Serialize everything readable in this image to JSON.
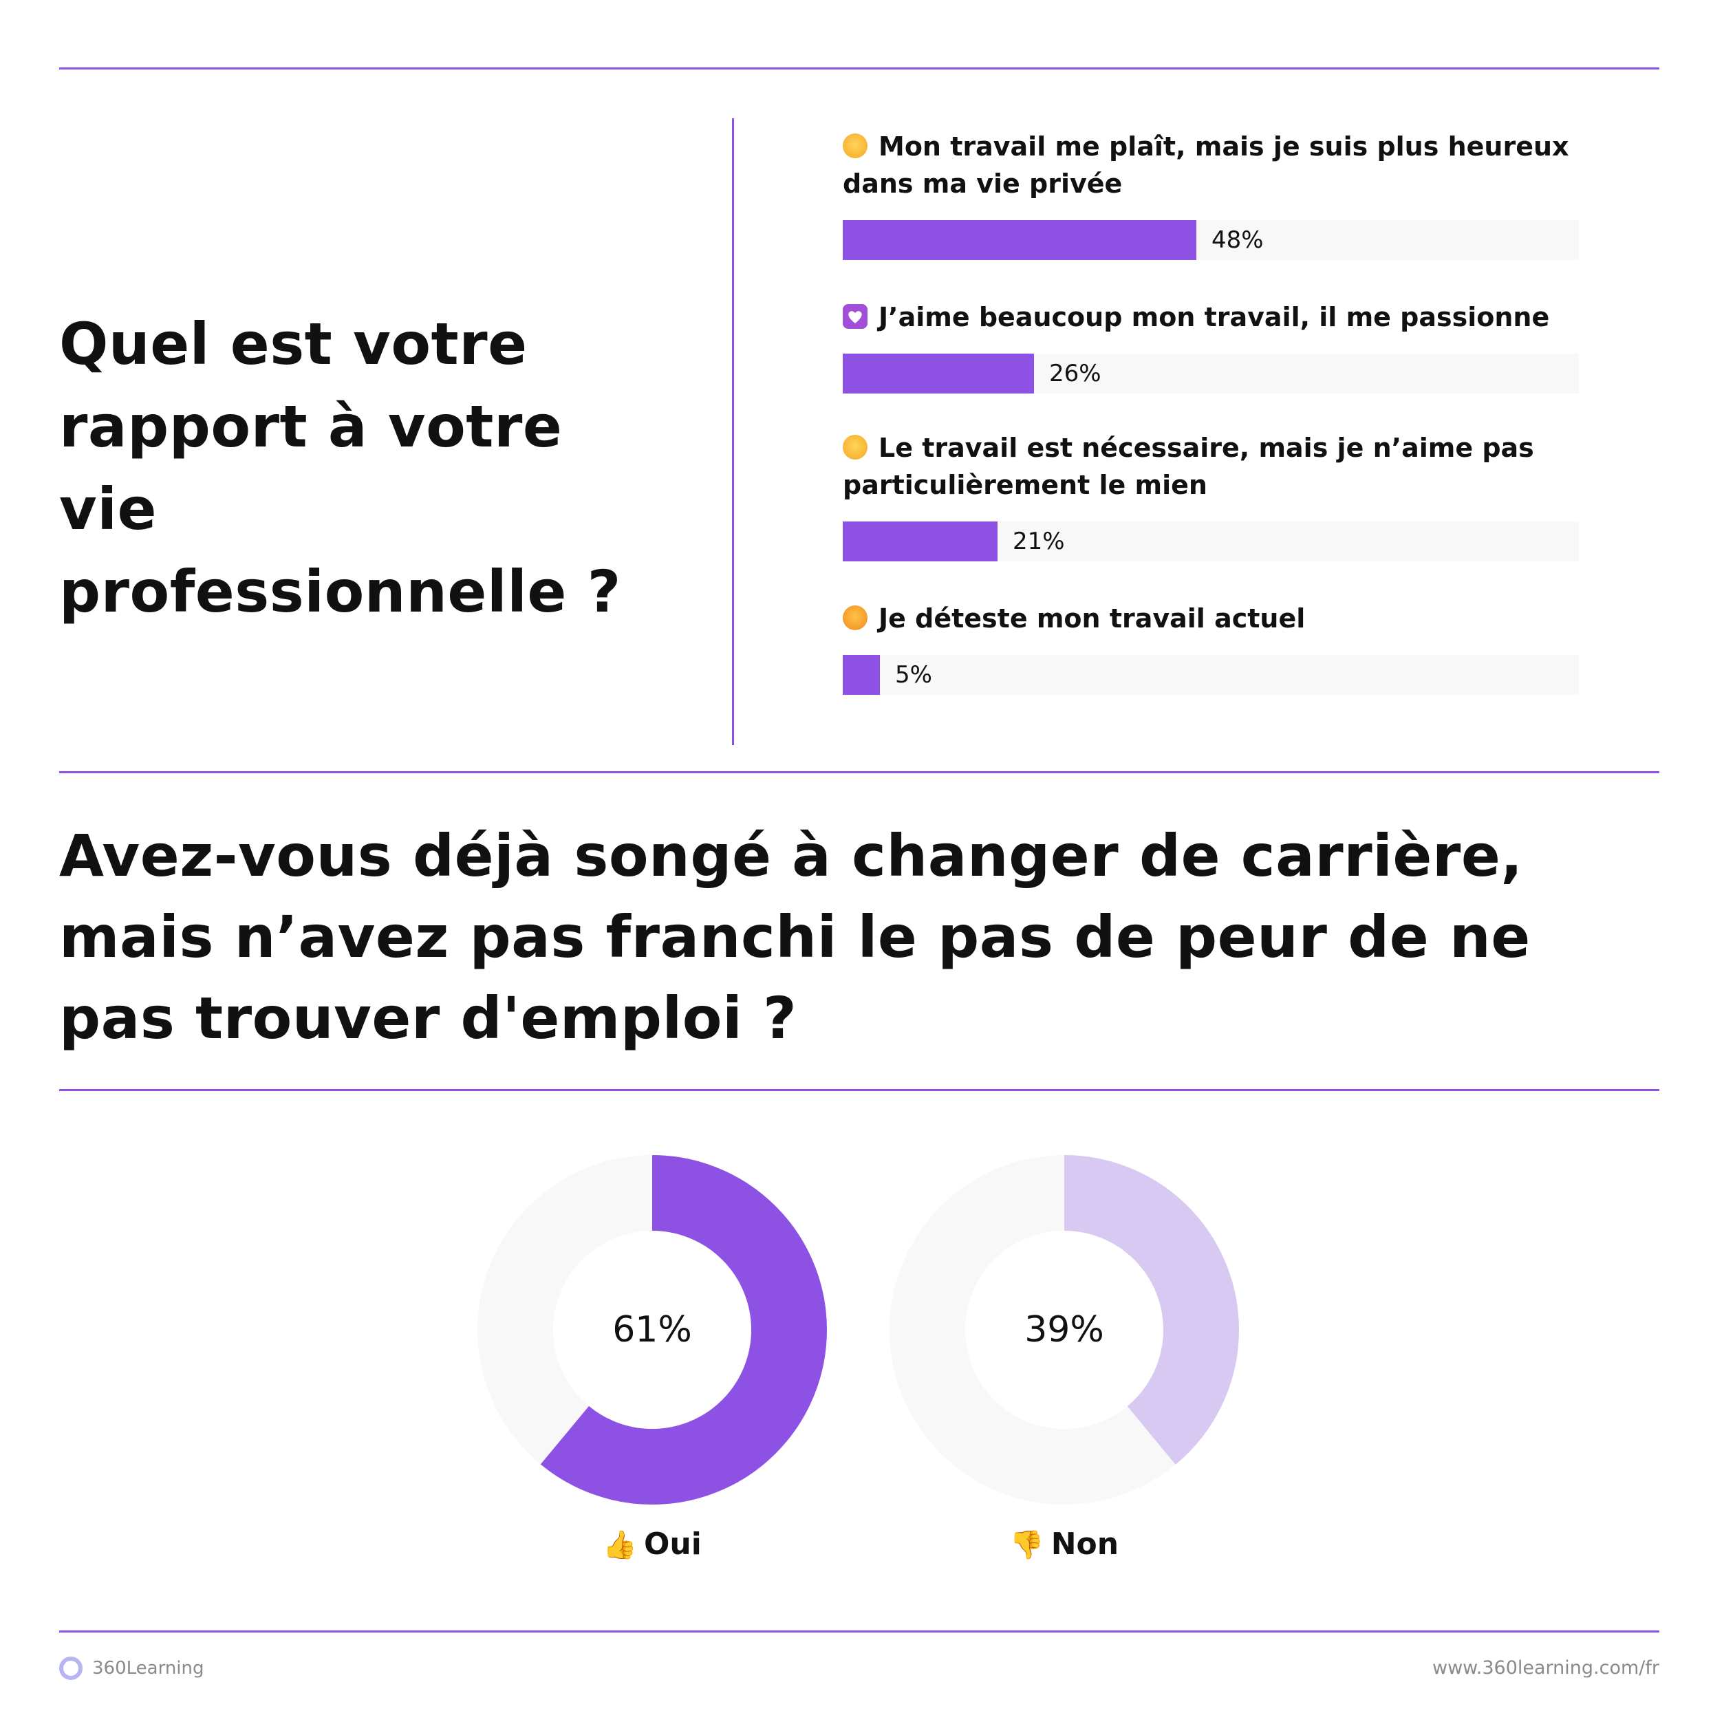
{
  "colors": {
    "accent": "#8d52e4",
    "accent_light": "#d8c9f2",
    "track": "#f8f8f8",
    "rule": "#8d52e4",
    "text": "#111111",
    "muted": "#8a8a8a"
  },
  "question1": {
    "title": "Quel est votre rapport à votre vie professionnelle ?"
  },
  "question2": {
    "title": "Avez-vous déjà songé à changer de carrière, mais n’avez pas franchi le pas de peur de ne pas trouver d'emploi ?"
  },
  "chart_data": [
    {
      "type": "bar",
      "orientation": "horizontal",
      "categories": [
        "Mon travail me plaît, mais je suis plus heureux dans ma vie privée",
        "J’aime beaucoup mon travail, il me passionne",
        "Le travail est nécessaire, mais je n’aime pas particulièrement le mien",
        "Je déteste mon travail actuel"
      ],
      "icons": [
        "smiling-face-icon",
        "heart-icon",
        "neutral-face-icon",
        "angry-face-icon"
      ],
      "values": [
        48,
        26,
        21,
        5
      ],
      "value_labels": [
        "48%",
        "26%",
        "21%",
        "5%"
      ],
      "xlim": [
        0,
        100
      ]
    },
    {
      "type": "pie",
      "style": "donut",
      "categories": [
        "Oui",
        "Non"
      ],
      "icons": [
        "thumbs-up-icon",
        "thumbs-down-icon"
      ],
      "values": [
        61,
        39
      ],
      "value_labels": [
        "61%",
        "39%"
      ]
    }
  ],
  "footer": {
    "brand": "360Learning",
    "url": "www.360learning.com/fr"
  }
}
